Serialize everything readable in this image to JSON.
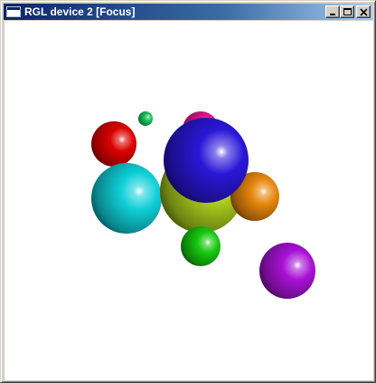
{
  "window": {
    "title": "RGL device 2 [Focus]",
    "controls": {
      "minimize": "minimize",
      "maximize": "maximize",
      "close": "close"
    }
  },
  "scene": {
    "background": "#ffffff",
    "spheres": [
      {
        "name": "sphere-red",
        "color": "#dd0000"
      },
      {
        "name": "sphere-small-green",
        "color": "#17c05a"
      },
      {
        "name": "sphere-pink",
        "color": "#e0168a"
      },
      {
        "name": "sphere-cyan",
        "color": "#0fcfd8"
      },
      {
        "name": "sphere-yellow-green",
        "color": "#a8c91c"
      },
      {
        "name": "sphere-orange",
        "color": "#e6860c"
      },
      {
        "name": "sphere-blue",
        "color": "#2a17d8"
      },
      {
        "name": "sphere-green",
        "color": "#17c80f"
      },
      {
        "name": "sphere-purple",
        "color": "#a812d6"
      }
    ]
  }
}
